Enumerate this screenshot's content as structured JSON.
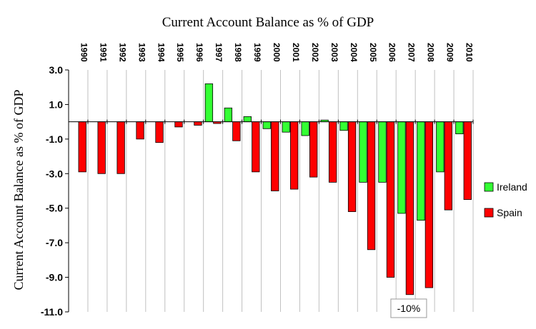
{
  "chart_data": {
    "type": "bar",
    "title": "Current Account Balance as % of GDP",
    "xlabel": "",
    "ylabel": "Current Account Balance as % of GDP",
    "ylim": [
      -11.0,
      3.0
    ],
    "yticks": [
      "3.0",
      "1.0",
      "-1.0",
      "-3.0",
      "-5.0",
      "-7.0",
      "-9.0",
      "-11.0"
    ],
    "ytick_values": [
      3,
      1,
      -1,
      -3,
      -5,
      -7,
      -9,
      -11
    ],
    "categories": [
      "1990",
      "1991",
      "1992",
      "1993",
      "1994",
      "1995",
      "1996",
      "1997",
      "1998",
      "1999",
      "2000",
      "2001",
      "2002",
      "2003",
      "2004",
      "2005",
      "2006",
      "2007",
      "2008",
      "2009",
      "2010"
    ],
    "series": [
      {
        "name": "Ireland",
        "color": "#33ff33",
        "values": [
          0,
          0,
          0,
          0,
          0,
          0,
          0,
          2.2,
          0.8,
          0.3,
          -0.4,
          -0.6,
          -0.8,
          0.1,
          -0.5,
          -3.5,
          -3.5,
          -5.3,
          -5.7,
          -2.9,
          -0.7
        ]
      },
      {
        "name": "Spain",
        "color": "#ff0000",
        "values": [
          -2.9,
          -3.0,
          -3.0,
          -1.0,
          -1.2,
          -0.3,
          -0.2,
          -0.1,
          -1.1,
          -2.9,
          -4.0,
          -3.9,
          -3.2,
          -3.5,
          -5.2,
          -7.4,
          -9.0,
          -10.0,
          -9.6,
          -5.1,
          -4.5
        ]
      }
    ],
    "legend_position": "right",
    "annotations": [
      {
        "text": "-10%",
        "category": "2007",
        "series": "Spain"
      }
    ],
    "grid": "vertical"
  }
}
